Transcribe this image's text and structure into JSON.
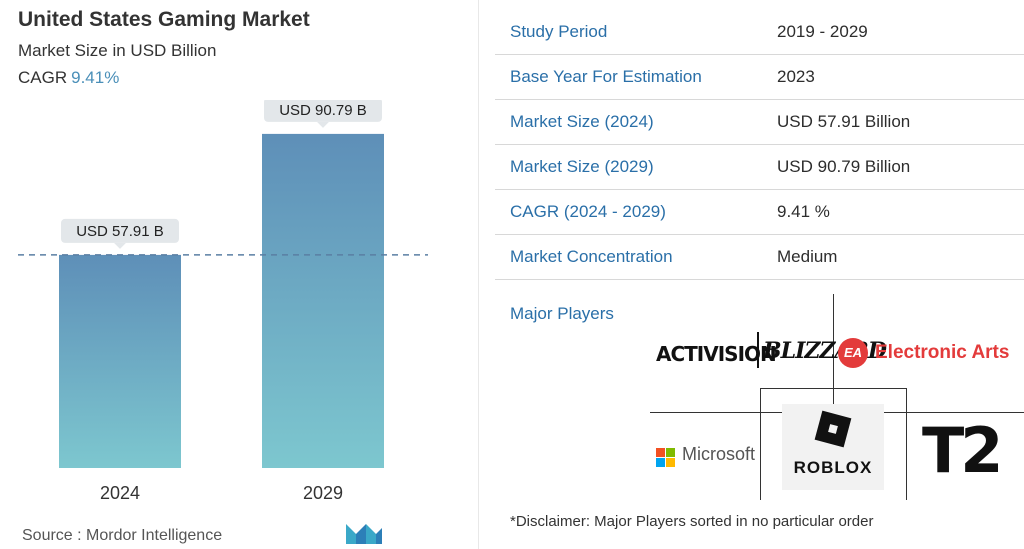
{
  "header": {
    "title": "United States Gaming Market",
    "subtitle": "Market Size in USD Billion",
    "cagr_label": "CAGR",
    "cagr_value": "9.41%"
  },
  "chart_data": {
    "type": "bar",
    "categories": [
      "2024",
      "2029"
    ],
    "values": [
      57.91,
      90.79
    ],
    "data_labels": [
      "USD 57.91 B",
      "USD 90.79 B"
    ],
    "title": "United States Gaming Market",
    "subtitle": "Market Size in USD Billion",
    "xlabel": "",
    "ylabel": "",
    "ylim": [
      0,
      100
    ],
    "grid": false,
    "reference_line": 57.91,
    "colors": {
      "bar_top": "#5e8fb8",
      "bar_bottom": "#7dc7cf",
      "label_bg": "#e3e7ea",
      "ref_line": "#5a7fa3"
    }
  },
  "footer": {
    "source": "Source :  Mordor Intelligence"
  },
  "table": {
    "rows": [
      {
        "key": "Study Period",
        "value": "2019 - 2029"
      },
      {
        "key": "Base Year For Estimation",
        "value": "2023"
      },
      {
        "key": "Market Size (2024)",
        "value": "USD 57.91 Billion"
      },
      {
        "key": "Market Size (2029)",
        "value": "USD 90.79 Billion"
      },
      {
        "key": "CAGR (2024 - 2029)",
        "value": "9.41 %"
      },
      {
        "key": "Market Concentration",
        "value": "Medium"
      }
    ]
  },
  "players": {
    "title": "Major Players",
    "activision": "ACTIVISION",
    "blizzard": "BLIZZARD",
    "ea_badge": "EA",
    "ea": "Electronic Arts",
    "microsoft": "Microsoft",
    "roblox": "ROBLOX",
    "t2": "T2"
  },
  "disclaimer": "*Disclaimer: Major Players sorted in no particular order"
}
